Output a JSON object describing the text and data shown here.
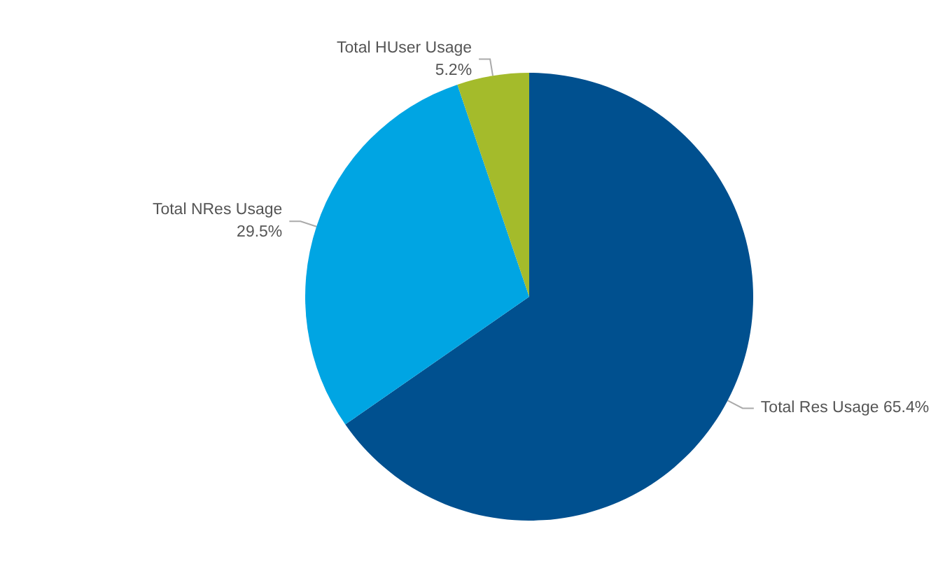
{
  "chart_data": {
    "type": "pie",
    "categories": [
      "Total Res Usage",
      "Total NRes Usage",
      "Total HUser Usage"
    ],
    "values": [
      65.4,
      29.5,
      5.2
    ],
    "colors": [
      "#00508f",
      "#00a5e3",
      "#a4bb2b"
    ],
    "value_labels": [
      "65.4%",
      "29.5%",
      "5.2%"
    ],
    "legend": false
  }
}
